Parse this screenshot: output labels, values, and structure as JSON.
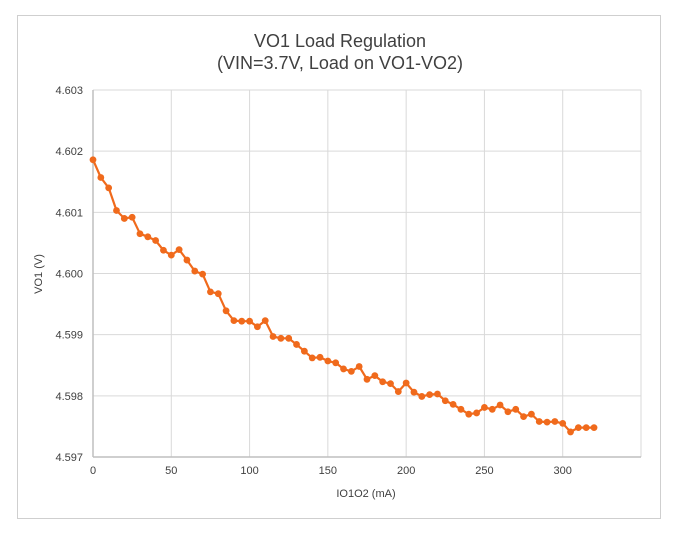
{
  "chart_data": {
    "type": "line",
    "title": "VO1 Load Regulation",
    "subtitle": "(VIN=3.7V, Load on VO1-VO2)",
    "xlabel": "IO1O2 (mA)",
    "ylabel": "VO1 (V)",
    "xlim": [
      0,
      350
    ],
    "ylim": [
      4.597,
      4.603
    ],
    "xticks": [
      0,
      50,
      100,
      150,
      200,
      250,
      300
    ],
    "yticks": [
      "4.597",
      "4.598",
      "4.599",
      "4.600",
      "4.601",
      "4.602",
      "4.603"
    ],
    "grid": true,
    "legend": "none",
    "series": [
      {
        "name": "VO1",
        "color": "#F06A1C",
        "x": [
          0,
          5,
          10,
          15,
          20,
          25,
          30,
          35,
          40,
          45,
          50,
          55,
          60,
          65,
          70,
          75,
          80,
          85,
          90,
          95,
          100,
          105,
          110,
          115,
          120,
          125,
          130,
          135,
          140,
          145,
          150,
          155,
          160,
          165,
          170,
          175,
          180,
          185,
          190,
          195,
          200,
          205,
          210,
          215,
          220,
          225,
          230,
          235,
          240,
          245,
          250,
          255,
          260,
          265,
          270,
          275,
          280,
          285,
          290,
          295,
          300,
          305,
          310,
          315,
          320
        ],
        "y": [
          4.60186,
          4.60157,
          4.6014,
          4.60103,
          4.6009,
          4.60092,
          4.60065,
          4.6006,
          4.60054,
          4.60038,
          4.6003,
          4.60039,
          4.60022,
          4.60004,
          4.59999,
          4.5997,
          4.59967,
          4.59939,
          4.59923,
          4.59922,
          4.59922,
          4.59913,
          4.59923,
          4.59897,
          4.59894,
          4.59894,
          4.59884,
          4.59873,
          4.59862,
          4.59863,
          4.59857,
          4.59854,
          4.59844,
          4.5984,
          4.59848,
          4.59827,
          4.59833,
          4.59823,
          4.5982,
          4.59807,
          4.59821,
          4.59806,
          4.59799,
          4.59802,
          4.59803,
          4.59792,
          4.59786,
          4.59778,
          4.5977,
          4.59772,
          4.59781,
          4.59778,
          4.59785,
          4.59774,
          4.59778,
          4.59766,
          4.5977,
          4.59758,
          4.59757,
          4.59758,
          4.59755,
          4.59741,
          4.59748,
          4.59748,
          4.59748
        ]
      }
    ]
  }
}
